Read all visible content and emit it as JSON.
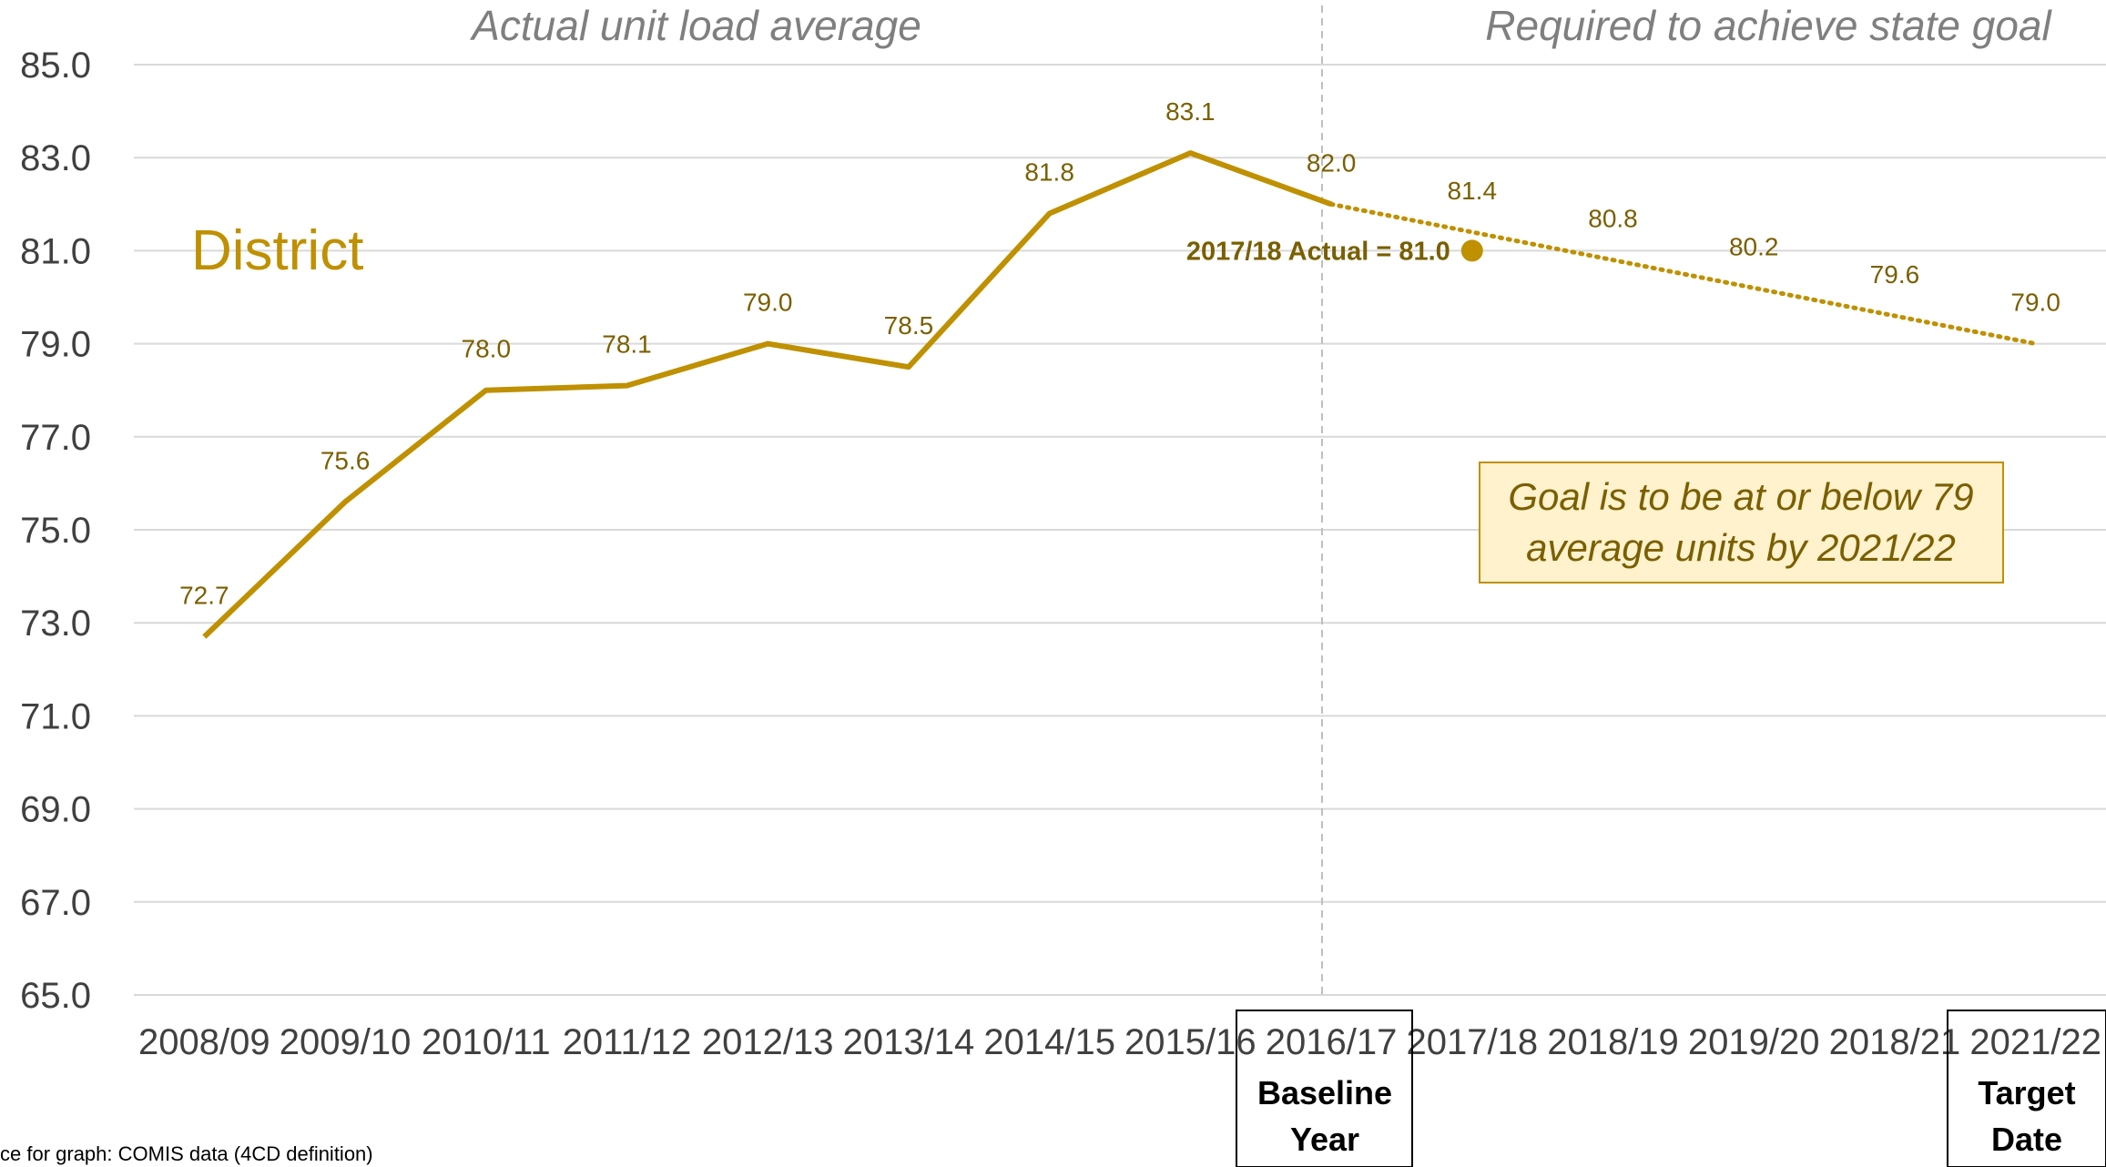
{
  "chart_data": {
    "type": "line",
    "categories": [
      "2008/09",
      "2009/10",
      "2010/11",
      "2011/12",
      "2012/13",
      "2013/14",
      "2014/15",
      "2015/16",
      "2016/17",
      "2017/18",
      "2018/19",
      "2019/20",
      "2018/21",
      "2021/22"
    ],
    "series": [
      {
        "values": [
          72.7,
          75.6,
          78.0,
          78.1,
          79.0,
          78.5,
          81.8,
          83.1,
          82.0,
          null,
          null,
          null,
          null,
          null
        ],
        "labels": [
          "72.7",
          "75.6",
          "78.0",
          "78.1",
          "79.0",
          "78.5",
          "81.8",
          "83.1",
          "82.0",
          "",
          "",
          "",
          "",
          ""
        ],
        "style": "solid"
      },
      {
        "values": [
          null,
          null,
          null,
          null,
          null,
          null,
          null,
          null,
          82.0,
          81.4,
          80.8,
          80.2,
          79.6,
          79.0
        ],
        "labels": [
          "",
          "",
          "",
          "",
          "",
          "",
          "",
          "",
          "",
          "81.4",
          "80.8",
          "80.2",
          "79.6",
          "79.0"
        ],
        "style": "dotted"
      }
    ],
    "actual_point": {
      "category": "2017/18",
      "value": 81.0,
      "label": "2017/18 Actual = 81.0"
    },
    "ylim": [
      65.0,
      85.0
    ],
    "yticks": [
      "85.0",
      "83.0",
      "81.0",
      "79.0",
      "77.0",
      "75.0",
      "73.0",
      "71.0",
      "69.0",
      "67.0",
      "65.0"
    ],
    "grid": true,
    "color": "#bf9000",
    "section_left": "Actual unit load average",
    "section_right": "Required to achieve state goal",
    "series_label": "District",
    "baseline_box": [
      "Baseline",
      "Year"
    ],
    "target_box": [
      "Target",
      "Date"
    ],
    "goal_text": [
      "Goal is to be at or below 79",
      "average units by 2021/22"
    ],
    "source_note": "ce for graph: COMIS data (4CD definition)"
  }
}
